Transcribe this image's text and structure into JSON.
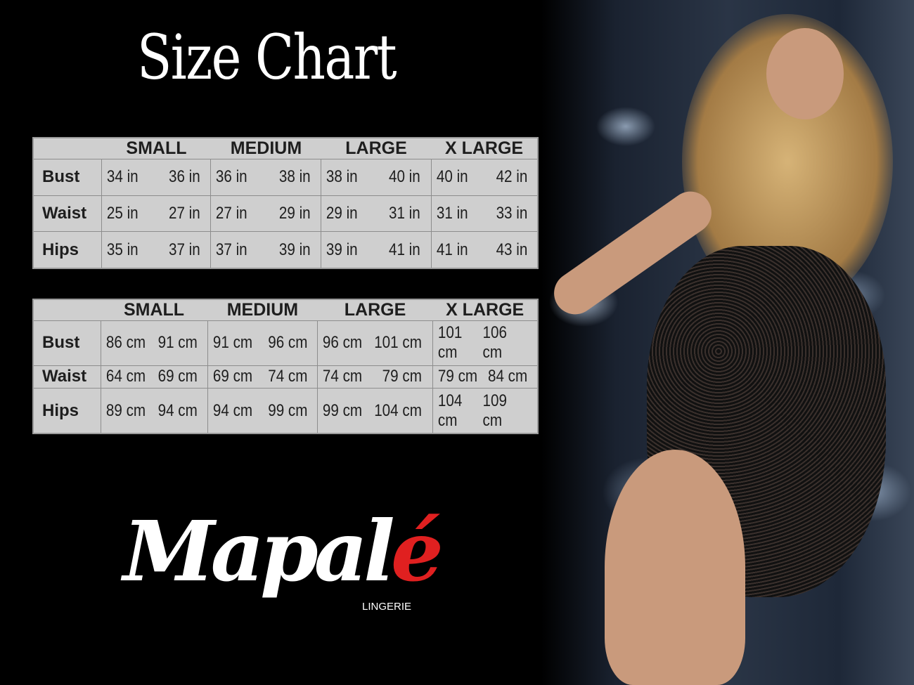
{
  "title": "Size Chart",
  "sizes": [
    "SMALL",
    "MEDIUM",
    "LARGE",
    "X LARGE"
  ],
  "inches": {
    "rows": [
      {
        "label": "Bust",
        "values": [
          "34 in",
          "36 in",
          "36 in",
          "38 in",
          "38 in",
          "40 in",
          "40 in",
          "42 in"
        ]
      },
      {
        "label": "Waist",
        "values": [
          "25 in",
          "27 in",
          "27 in",
          "29 in",
          "29 in",
          "31 in",
          "31 in",
          "33 in"
        ]
      },
      {
        "label": "Hips",
        "values": [
          "35 in",
          "37 in",
          "37 in",
          "39 in",
          "39 in",
          "41 in",
          "41 in",
          "43 in"
        ]
      }
    ]
  },
  "cm": {
    "rows": [
      {
        "label": "Bust",
        "values": [
          "86 cm",
          "91 cm",
          "91 cm",
          "96 cm",
          "96 cm",
          "101 cm",
          "101 cm",
          "106 cm"
        ]
      },
      {
        "label": "Waist",
        "values": [
          "64 cm",
          "69 cm",
          "69 cm",
          "74 cm",
          "74 cm",
          "79  cm",
          "79 cm",
          "84 cm"
        ]
      },
      {
        "label": "Hips",
        "values": [
          "89 cm",
          "94 cm",
          "94 cm",
          "99 cm",
          "99 cm",
          "104 cm",
          "104 cm",
          "109 cm"
        ]
      }
    ]
  },
  "logo": {
    "text_main": "Mapal",
    "text_accent": "é",
    "subtitle": "LINGERIE",
    "accent_color": "#e02020"
  }
}
